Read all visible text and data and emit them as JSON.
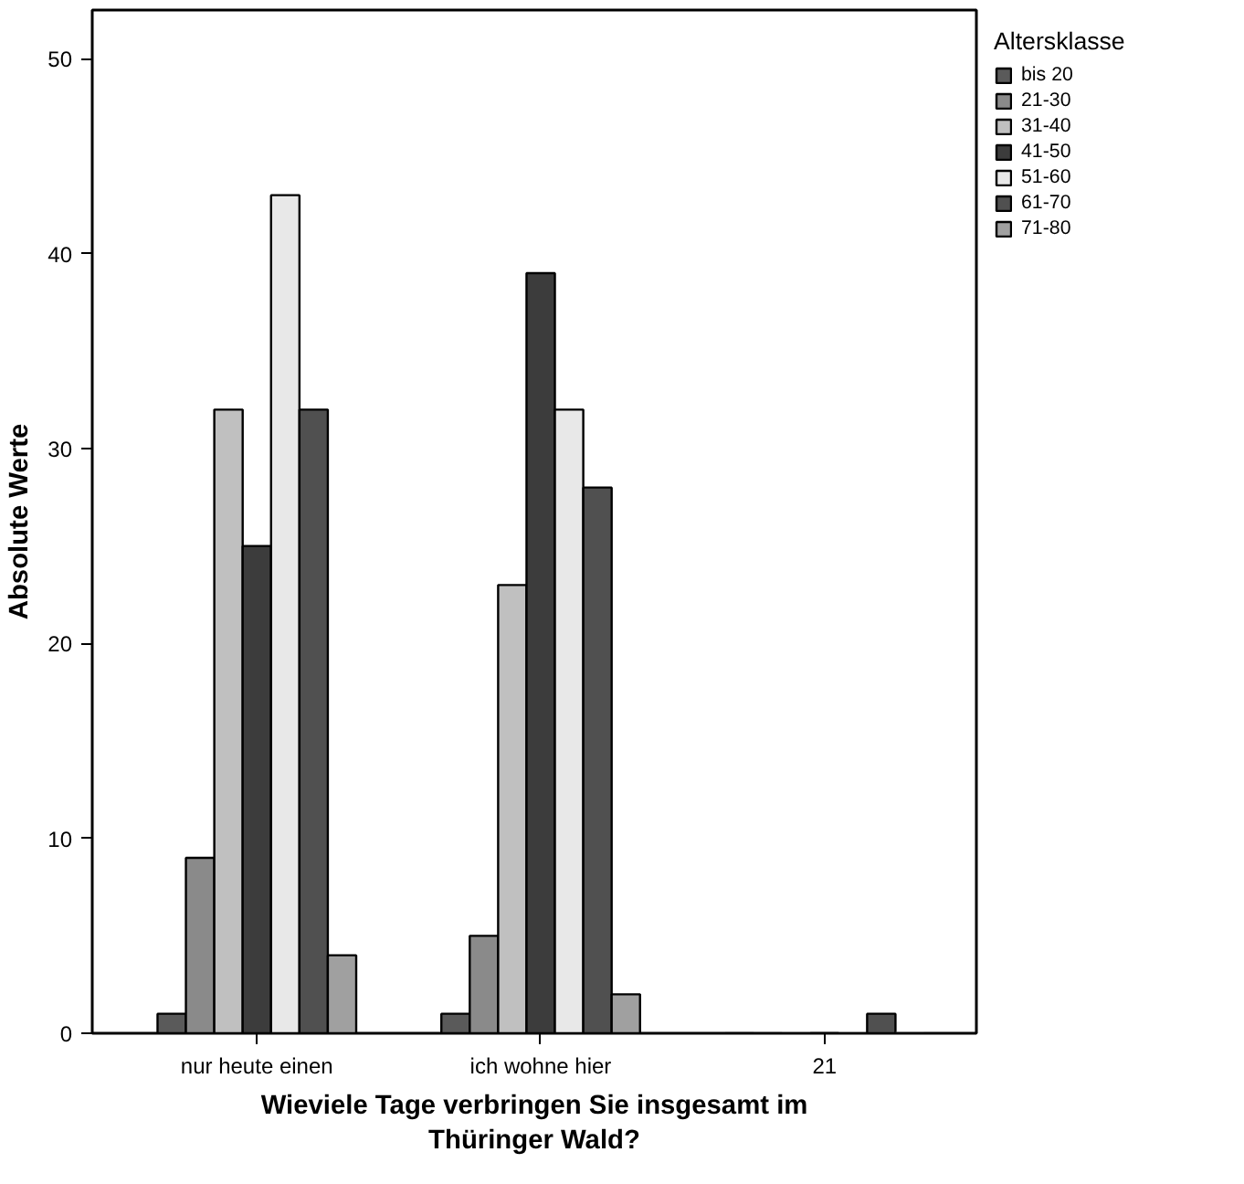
{
  "chart_data": {
    "type": "bar",
    "xlabel": "Wieviele Tage verbringen Sie insgesamt im\nThüringer Wald?",
    "ylabel": "Absolute Werte",
    "legend_title": "Altersklasse",
    "legend": "top right",
    "grid": false,
    "categories": [
      "nur heute einen",
      "ich wohne hier",
      "21"
    ],
    "ylim": [
      0,
      52.5
    ],
    "yticks": [
      0,
      10,
      20,
      30,
      40,
      50
    ],
    "series": [
      {
        "name": "bis 20",
        "color": "#5a5a5a",
        "values": [
          1,
          1,
          0
        ]
      },
      {
        "name": "21-30",
        "color": "#8a8a8a",
        "values": [
          9,
          5,
          0
        ]
      },
      {
        "name": "31-40",
        "color": "#c0c0c0",
        "values": [
          32,
          23,
          0
        ]
      },
      {
        "name": "41-50",
        "color": "#3c3c3c",
        "values": [
          25,
          39,
          0
        ]
      },
      {
        "name": "51-60",
        "color": "#e8e8e8",
        "values": [
          43,
          32,
          0
        ]
      },
      {
        "name": "61-70",
        "color": "#505050",
        "values": [
          32,
          28,
          1
        ]
      },
      {
        "name": "71-80",
        "color": "#a0a0a0",
        "values": [
          4,
          2,
          0
        ]
      }
    ]
  }
}
